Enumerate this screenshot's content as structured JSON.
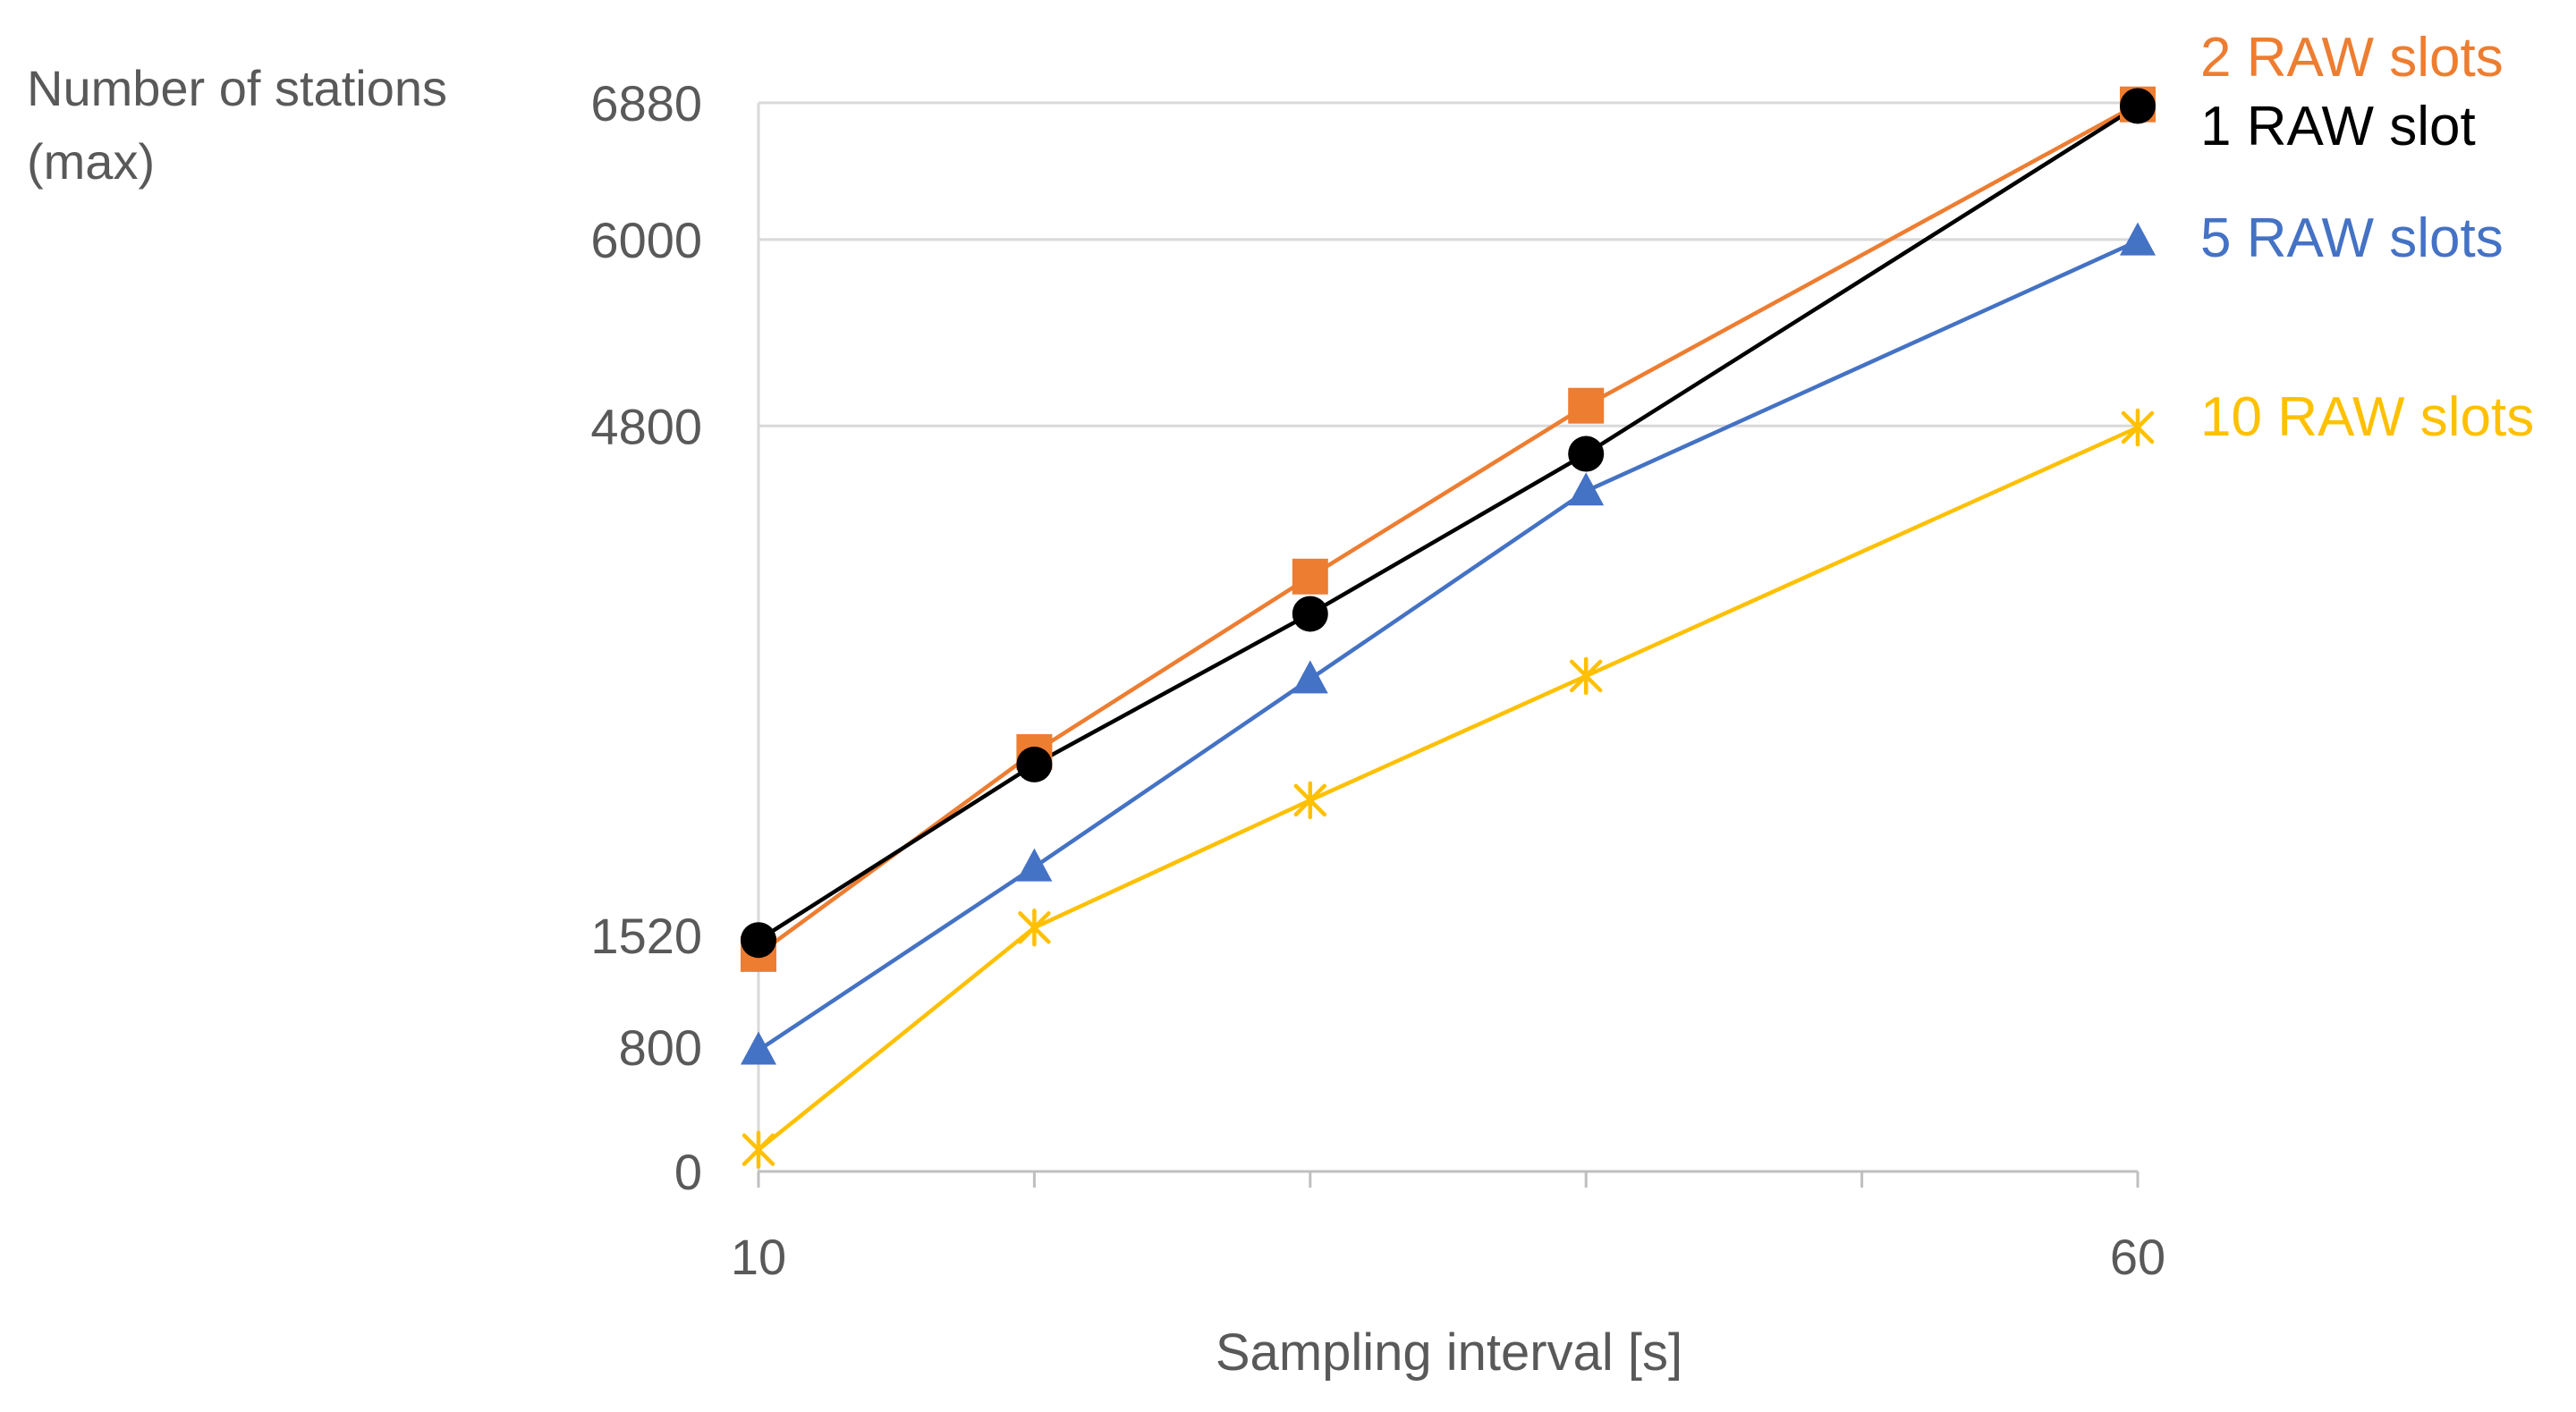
{
  "chart_data": {
    "type": "line",
    "title": "",
    "ylabel": "Number of stations (max)",
    "ylabel_lines": [
      "Number of stations",
      "(max)"
    ],
    "xlabel": "Sampling interval [s]",
    "xlim": [
      10,
      60
    ],
    "ylim": [
      0,
      6880
    ],
    "x": [
      10,
      20,
      30,
      40,
      50,
      60
    ],
    "x_ticks": [
      10,
      20,
      30,
      40,
      50,
      60
    ],
    "x_tick_labels": [
      "10",
      "",
      "",
      "",
      "",
      "60"
    ],
    "y_ticks": [
      0,
      800,
      1520,
      4800,
      6000,
      6880
    ],
    "y_tick_labels": [
      "0",
      "800",
      "1520",
      "4800",
      "6000",
      "6880"
    ],
    "gridlines_y": [
      4800,
      6000,
      6880
    ],
    "legend_position": "right, next to line ends",
    "series": [
      {
        "name": "2 RAW slots",
        "color": "#ED7D31",
        "marker": "square",
        "x": [
          10,
          20,
          30,
          40,
          60
        ],
        "values": [
          1400,
          2700,
          3830,
          4930,
          6870
        ]
      },
      {
        "name": "1 RAW slot",
        "color": "#000000",
        "marker": "circle",
        "x": [
          10,
          20,
          30,
          40,
          60
        ],
        "values": [
          1490,
          2620,
          3590,
          4620,
          6860
        ]
      },
      {
        "name": "5 RAW slots",
        "color": "#4472C4",
        "marker": "triangle",
        "x": [
          10,
          20,
          30,
          40,
          60
        ],
        "values": [
          780,
          1960,
          3170,
          4380,
          5990
        ]
      },
      {
        "name": "10 RAW slots",
        "color": "#FFC000",
        "marker": "asterisk",
        "x": [
          10,
          20,
          30,
          40,
          60
        ],
        "values": [
          140,
          1570,
          2390,
          3190,
          4790
        ]
      }
    ]
  }
}
